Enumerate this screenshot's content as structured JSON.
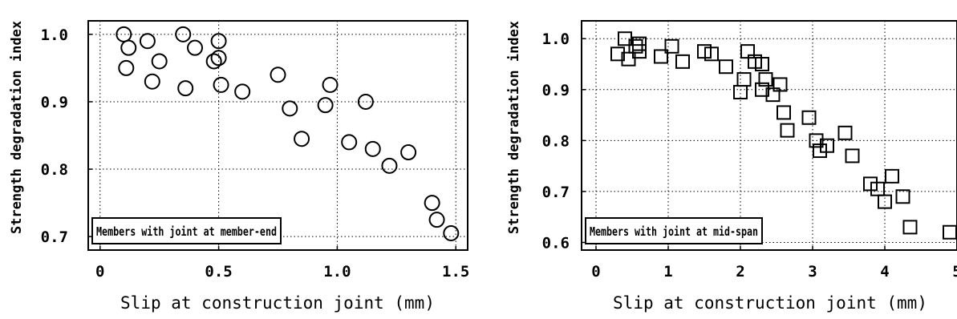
{
  "chart_data": [
    {
      "type": "scatter",
      "marker": "circle",
      "ylabel": "Strength degradation index",
      "xlabel": "Slip at construction joint (mm)",
      "legend": "Members with joint at member-end",
      "legend_placement": "bottom-left",
      "xlim": [
        -0.05,
        1.55
      ],
      "ylim": [
        0.68,
        1.02
      ],
      "xticks": [
        0,
        0.5,
        1.0,
        1.5
      ],
      "xtick_labels": [
        "0",
        "0.5",
        "1.0",
        "1.5"
      ],
      "yticks": [
        0.7,
        0.8,
        0.9,
        1.0
      ],
      "ytick_labels": [
        "0.7",
        "0.8",
        "0.9",
        "1.0"
      ],
      "grid": true,
      "x": [
        0.1,
        0.12,
        0.11,
        0.2,
        0.22,
        0.25,
        0.35,
        0.36,
        0.4,
        0.48,
        0.5,
        0.5,
        0.51,
        0.6,
        0.75,
        0.8,
        0.85,
        0.95,
        0.97,
        1.05,
        1.12,
        1.15,
        1.22,
        1.3,
        1.4,
        1.42,
        1.48
      ],
      "y": [
        1.0,
        0.98,
        0.95,
        0.99,
        0.93,
        0.96,
        1.0,
        0.92,
        0.98,
        0.96,
        0.99,
        0.965,
        0.925,
        0.915,
        0.94,
        0.89,
        0.845,
        0.895,
        0.925,
        0.84,
        0.9,
        0.83,
        0.805,
        0.825,
        0.75,
        0.725,
        0.705
      ]
    },
    {
      "type": "scatter",
      "marker": "square",
      "ylabel": "Strength degradation index",
      "xlabel": "Slip at construction joint (mm)",
      "legend": "Members with joint at mid-span",
      "legend_placement": "bottom-left",
      "xlim": [
        -0.2,
        5.0
      ],
      "ylim": [
        0.585,
        1.035
      ],
      "xticks": [
        0,
        1,
        2,
        3,
        4,
        5
      ],
      "xtick_labels": [
        "0",
        "1",
        "2",
        "3",
        "4",
        "5"
      ],
      "yticks": [
        0.6,
        0.7,
        0.8,
        0.9,
        1.0
      ],
      "ytick_labels": [
        "0.6",
        "0.7",
        "0.8",
        "0.9",
        "1.0"
      ],
      "grid": true,
      "x": [
        0.3,
        0.4,
        0.45,
        0.55,
        0.6,
        0.6,
        0.9,
        1.05,
        1.2,
        1.5,
        1.6,
        1.8,
        2.0,
        2.05,
        2.1,
        2.2,
        2.3,
        2.3,
        2.35,
        2.45,
        2.55,
        2.6,
        2.65,
        2.95,
        3.05,
        3.1,
        3.2,
        3.45,
        3.55,
        3.8,
        3.9,
        4.0,
        4.1,
        4.25,
        4.35,
        4.9
      ],
      "y": [
        0.97,
        1.0,
        0.96,
        0.985,
        0.99,
        0.975,
        0.965,
        0.985,
        0.955,
        0.975,
        0.97,
        0.945,
        0.895,
        0.92,
        0.975,
        0.955,
        0.95,
        0.9,
        0.92,
        0.89,
        0.91,
        0.855,
        0.82,
        0.845,
        0.8,
        0.78,
        0.79,
        0.815,
        0.77,
        0.715,
        0.705,
        0.68,
        0.73,
        0.69,
        0.63,
        0.62
      ]
    }
  ]
}
